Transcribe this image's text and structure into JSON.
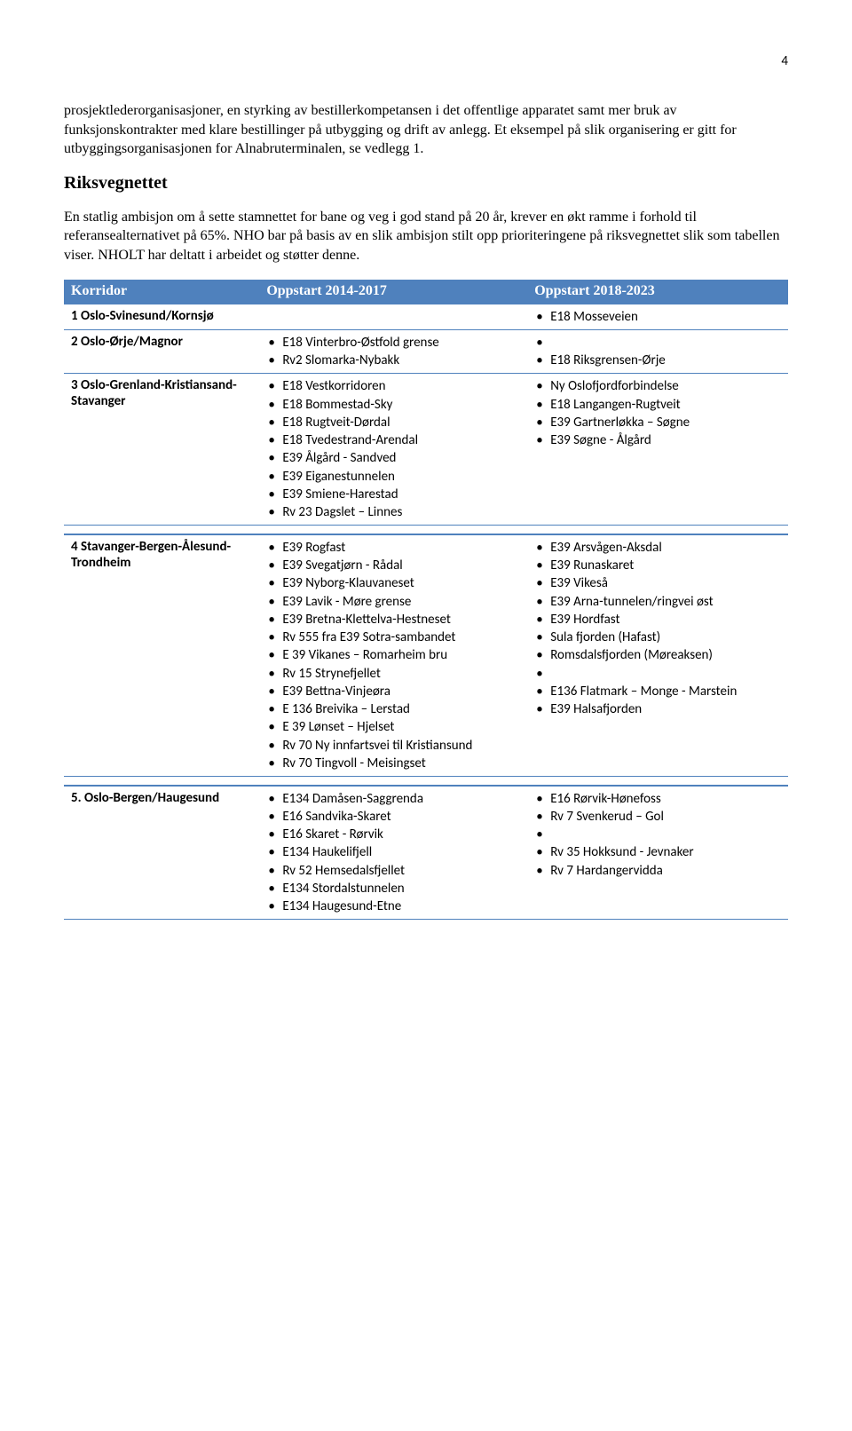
{
  "page_number": "4",
  "paragraphs": {
    "p1": "prosjektlederorganisasjoner, en styrking av bestillerkompetansen i det offentlige apparatet samt mer bruk av funksjonskontrakter med klare bestillinger på utbygging og drift av anlegg. Et eksempel på slik organisering er gitt for utbyggingsorganisasjonen for Alnabruterminalen, se vedlegg 1.",
    "h2": "Riksvegnettet",
    "p2": "En statlig ambisjon om å sette stamnettet for bane og veg i god stand på 20 år, krever en økt ramme i forhold til referansealternativet på 65%. NHO bar på basis av en slik ambisjon stilt opp prioriteringene på riksvegnettet slik som tabellen viser. NHOLT har deltatt i arbeidet og støtter denne."
  },
  "table": {
    "headers": [
      "Korridor",
      "Oppstart 2014-2017",
      "Oppstart 2018-2023"
    ],
    "rows": [
      {
        "label": "1 Oslo-Svinesund/Kornsjø",
        "col1": [],
        "col2": [
          "E18 Mosseveien"
        ]
      },
      {
        "label": "2 Oslo-Ørje/Magnor",
        "col1": [
          "E18 Vinterbro-Østfold grense",
          "Rv2 Slomarka-Nybakk"
        ],
        "col2": [
          "",
          "E18 Riksgrensen-Ørje"
        ]
      },
      {
        "label": "3 Oslo-Grenland-Kristiansand-Stavanger",
        "col1": [
          "E18 Vestkorridoren",
          "E18 Bommestad-Sky",
          "E18 Rugtveit-Dørdal",
          "E18 Tvedestrand-Arendal",
          "E39 Ålgård - Sandved",
          "E39 Eiganestunnelen",
          "E39 Smiene-Harestad",
          "Rv 23 Dagslet – Linnes"
        ],
        "col2": [
          "Ny Oslofjordforbindelse",
          "E18 Langangen-Rugtveit",
          "E39 Gartnerløkka – Søgne",
          "E39 Søgne - Ålgård"
        ]
      },
      {
        "label": "4 Stavanger-Bergen-Ålesund-Trondheim",
        "col1": [
          "E39 Rogfast",
          "E39 Svegatjørn - Rådal",
          "E39 Nyborg-Klauvaneset",
          "E39 Lavik - Møre grense",
          "E39 Bretna-Klettelva-Hestneset",
          "Rv 555 fra E39 Sotra-sambandet",
          "E 39 Vikanes – Romarheim bru",
          "Rv 15 Strynefjellet",
          "E39 Bettna-Vinjeøra",
          "E 136 Breivika – Lerstad",
          "E 39 Lønset – Hjelset",
          "Rv 70 Ny innfartsvei til Kristiansund",
          "Rv 70 Tingvoll - Meisingset"
        ],
        "col2": [
          "E39 Arsvågen-Aksdal",
          "E39 Runaskaret",
          "E39 Vikeså",
          "E39 Arna-tunnelen/ringvei øst",
          "E39 Hordfast",
          "Sula fjorden (Hafast)",
          "Romsdalsfjorden (Møreaksen)",
          "",
          "E136 Flatmark – Monge - Marstein",
          "E39 Halsafjorden"
        ],
        "sepBefore": true
      },
      {
        "label": "5.   Oslo-Bergen/Haugesund",
        "col1": [
          "E134 Damåsen-Saggrenda",
          "E16 Sandvika-Skaret",
          "E16 Skaret - Rørvik",
          "E134 Haukelifjell",
          "Rv 52 Hemsedalsfjellet",
          "E134 Stordalstunnelen",
          "E134 Haugesund-Etne"
        ],
        "col2": [
          "E16 Rørvik-Hønefoss",
          "Rv 7 Svenkerud – Gol",
          "",
          "Rv 35 Hokksund - Jevnaker",
          "Rv 7 Hardangervidda"
        ],
        "sepBefore": true
      }
    ]
  }
}
